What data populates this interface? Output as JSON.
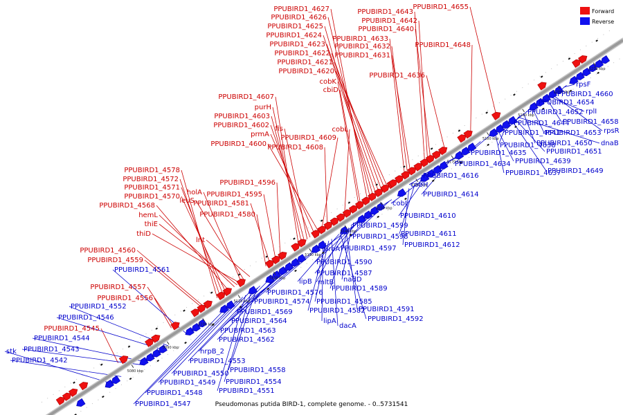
{
  "colors": {
    "forward": "#ee1111",
    "reverse": "#1111ee",
    "leader_forward": "#cc0000",
    "leader_reverse": "#0000cc",
    "backbone": "#9a9a9a"
  },
  "legend": [
    {
      "label": "Forward",
      "color": "#ee1111"
    },
    {
      "label": "Reverse",
      "color": "#1111ee"
    }
  ],
  "caption": "Pseudomonas putida BIRD-1, complete genome. - 0..5731541",
  "ticks": [
    "5080 kbp",
    "5090 kbp",
    "5100 kbp",
    "5110 kbp",
    "5120 kbp",
    "5130 kbp",
    "5140 kbp",
    "5150 kbp",
    "5160 kbp",
    "5170 kbp",
    "5180 kbp",
    "5190 kbp",
    "5200 kbp",
    "5210 kbp",
    "5220 kbp"
  ],
  "forward_labels": [
    {
      "text": "PPUBIRD1_4627"
    },
    {
      "text": "PPUBIRD1_4626"
    },
    {
      "text": "PPUBIRD1_4625"
    },
    {
      "text": "PPUBIRD1_4624"
    },
    {
      "text": "PPUBIRD1_4623"
    },
    {
      "text": "PPUBIRD1_4622"
    },
    {
      "text": "PPUBIRD1_4621"
    },
    {
      "text": "PPUBIRD1_4620"
    },
    {
      "text": "PPUBIRD1_4633"
    },
    {
      "text": "PPUBIRD1_4632"
    },
    {
      "text": "PPUBIRD1_4631"
    },
    {
      "text": "cobK"
    },
    {
      "text": "cbiD"
    },
    {
      "text": "PPUBIRD1_4643"
    },
    {
      "text": "PPUBIRD1_4642"
    },
    {
      "text": "PPUBIRD1_4640"
    },
    {
      "text": "PPUBIRD1_4655"
    },
    {
      "text": "PPUBIRD1_4648"
    },
    {
      "text": "PPUBIRD1_4636"
    },
    {
      "text": "PPUBIRD1_4607"
    },
    {
      "text": "purH"
    },
    {
      "text": "PPUBIRD1_4603"
    },
    {
      "text": "fis"
    },
    {
      "text": "PPUBIRD1_4602"
    },
    {
      "text": "prmA"
    },
    {
      "text": "PPUBIRD1_4609"
    },
    {
      "text": "PPUBIRD1_4600"
    },
    {
      "text": "PPUBIRD1_4608"
    },
    {
      "text": "cobL"
    },
    {
      "text": "PPUBIRD1_4578"
    },
    {
      "text": "PPUBIRD1_4572"
    },
    {
      "text": "PPUBIRD1_4571"
    },
    {
      "text": "PPUBIRD1_4570"
    },
    {
      "text": "PPUBIRD1_4568"
    },
    {
      "text": "holA"
    },
    {
      "text": "leuS"
    },
    {
      "text": "PPUBIRD1_4596"
    },
    {
      "text": "PPUBIRD1_4595"
    },
    {
      "text": "PPUBIRD1_4581"
    },
    {
      "text": "PPUBIRD1_4580"
    },
    {
      "text": "hemL"
    },
    {
      "text": "thiE"
    },
    {
      "text": "thiD"
    },
    {
      "text": "lnt"
    },
    {
      "text": "PPUBIRD1_4560"
    },
    {
      "text": "PPUBIRD1_4559"
    },
    {
      "text": "PPUBIRD1_4557"
    },
    {
      "text": "PPUBIRD1_4556"
    },
    {
      "text": "PPUBIRD1_4545"
    }
  ],
  "reverse_labels": [
    {
      "text": "PPUBIRD1_4561"
    },
    {
      "text": "PPUBIRD1_4552"
    },
    {
      "text": "PPUBIRD1_4546"
    },
    {
      "text": "PPUBIRD1_4544"
    },
    {
      "text": "stk"
    },
    {
      "text": "PPUBIRD1_4543"
    },
    {
      "text": "PPUBIRD1_4542"
    },
    {
      "text": "rpsF"
    },
    {
      "text": "PPUBIRD1_4660"
    },
    {
      "text": "PPUBIRD1_4654"
    },
    {
      "text": "rplI"
    },
    {
      "text": "PPUBIRD1_4652"
    },
    {
      "text": "PPUBIRD1_4658"
    },
    {
      "text": "PPUBIRD1_4644"
    },
    {
      "text": "rpsR"
    },
    {
      "text": "PPUBIRD1_4641"
    },
    {
      "text": "PPUBIRD1_4653"
    },
    {
      "text": "PPUBIRD1_4650"
    },
    {
      "text": "dnaB"
    },
    {
      "text": "PPUBIRD1_4638"
    },
    {
      "text": "PPUBIRD1_4651"
    },
    {
      "text": "PPUBIRD1_4635"
    },
    {
      "text": "PPUBIRD1_4639"
    },
    {
      "text": "PPUBIRD1_4634"
    },
    {
      "text": "PPUBIRD1_4637"
    },
    {
      "text": "PPUBIRD1_4649"
    },
    {
      "text": "PPUBIRD1_4616"
    },
    {
      "text": "cobH"
    },
    {
      "text": "PPUBIRD1_4614"
    },
    {
      "text": "cobJ"
    },
    {
      "text": "PPUBIRD1_4610"
    },
    {
      "text": "PPUBIRD1_4599"
    },
    {
      "text": "PPUBIRD1_4598"
    },
    {
      "text": "PPUBIRD1_4611"
    },
    {
      "text": "PPUBIRD1_4612"
    },
    {
      "text": "proA"
    },
    {
      "text": "PPUBIRD1_4597"
    },
    {
      "text": "PPUBIRD1_4590"
    },
    {
      "text": "PPUBIRD1_4587"
    },
    {
      "text": "nadD"
    },
    {
      "text": "mltB"
    },
    {
      "text": "lipB"
    },
    {
      "text": "PPUBIRD1_4589"
    },
    {
      "text": "PPUBIRD1_4576"
    },
    {
      "text": "PPUBIRD1_4585"
    },
    {
      "text": "PPUBIRD1_4574"
    },
    {
      "text": "PPUBIRD1_4582"
    },
    {
      "text": "PPUBIRD1_4591"
    },
    {
      "text": "PPUBIRD1_4569"
    },
    {
      "text": "PPUBIRD1_4592"
    },
    {
      "text": "lipA"
    },
    {
      "text": "dacA"
    },
    {
      "text": "PPUBIRD1_4564"
    },
    {
      "text": "PPUBIRD1_4563"
    },
    {
      "text": "PPUBIRD1_4562"
    },
    {
      "text": "hrpB_2"
    },
    {
      "text": "PPUBIRD1_4553"
    },
    {
      "text": "PPUBIRD1_4558"
    },
    {
      "text": "PPUBIRD1_4550"
    },
    {
      "text": "PPUBIRD1_4549"
    },
    {
      "text": "PPUBIRD1_4554"
    },
    {
      "text": "PPUBIRD1_4548"
    },
    {
      "text": "PPUBIRD1_4551"
    },
    {
      "text": "PPUBIRD1_4547"
    }
  ]
}
